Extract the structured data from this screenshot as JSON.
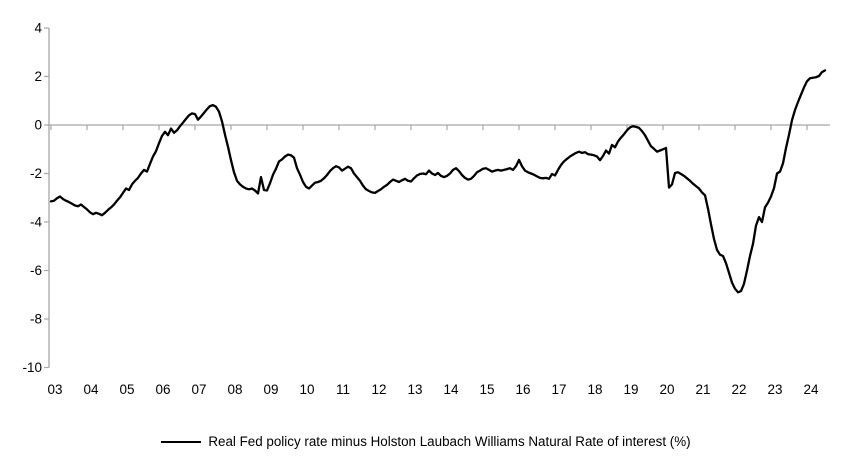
{
  "legend": {
    "label": "Real Fed policy rate minus Holston Laubach Williams Natural Rate of interest (%)"
  },
  "chart_data": {
    "type": "line",
    "title": "",
    "xlabel": "",
    "ylabel": "",
    "legend_position": "bottom-center",
    "grid": "zero-line-only",
    "line_color": "#000000",
    "axis_color": "#a6a6a6",
    "text_color": "#000000",
    "ylim": [
      -10,
      4
    ],
    "y_tick_values": [
      4,
      2,
      0,
      -2,
      -4,
      -6,
      -8,
      -10
    ],
    "x_tick_labels": [
      "03",
      "04",
      "05",
      "06",
      "07",
      "08",
      "09",
      "10",
      "11",
      "12",
      "13",
      "14",
      "15",
      "16",
      "17",
      "18",
      "19",
      "20",
      "21",
      "22",
      "23",
      "24"
    ],
    "x_start_year": 2003,
    "points_per_year": 12,
    "series": [
      {
        "name": "Real Fed policy rate minus Holston Laubach Williams Natural Rate of interest (%)",
        "values": [
          -3.15,
          -3.12,
          -3.02,
          -2.95,
          -3.05,
          -3.12,
          -3.18,
          -3.25,
          -3.32,
          -3.35,
          -3.28,
          -3.38,
          -3.48,
          -3.6,
          -3.68,
          -3.62,
          -3.66,
          -3.72,
          -3.62,
          -3.5,
          -3.4,
          -3.28,
          -3.12,
          -2.98,
          -2.8,
          -2.62,
          -2.68,
          -2.45,
          -2.3,
          -2.18,
          -2.0,
          -1.85,
          -1.92,
          -1.6,
          -1.3,
          -1.08,
          -0.75,
          -0.45,
          -0.28,
          -0.42,
          -0.15,
          -0.32,
          -0.22,
          -0.05,
          0.1,
          0.25,
          0.4,
          0.48,
          0.45,
          0.22,
          0.35,
          0.5,
          0.65,
          0.78,
          0.82,
          0.75,
          0.55,
          0.15,
          -0.4,
          -0.9,
          -1.45,
          -1.95,
          -2.3,
          -2.45,
          -2.55,
          -2.62,
          -2.65,
          -2.62,
          -2.7,
          -2.82,
          -2.15,
          -2.68,
          -2.7,
          -2.4,
          -2.05,
          -1.8,
          -1.5,
          -1.42,
          -1.3,
          -1.22,
          -1.25,
          -1.35,
          -1.78,
          -2.05,
          -2.35,
          -2.55,
          -2.62,
          -2.5,
          -2.38,
          -2.35,
          -2.3,
          -2.2,
          -2.06,
          -1.9,
          -1.78,
          -1.7,
          -1.75,
          -1.88,
          -1.8,
          -1.72,
          -1.78,
          -2.0,
          -2.15,
          -2.3,
          -2.5,
          -2.65,
          -2.72,
          -2.78,
          -2.8,
          -2.72,
          -2.65,
          -2.55,
          -2.47,
          -2.35,
          -2.25,
          -2.3,
          -2.35,
          -2.28,
          -2.22,
          -2.3,
          -2.33,
          -2.2,
          -2.08,
          -2.02,
          -2.0,
          -2.03,
          -1.88,
          -2.0,
          -2.06,
          -1.98,
          -2.1,
          -2.15,
          -2.1,
          -2.0,
          -1.85,
          -1.78,
          -1.9,
          -2.06,
          -2.18,
          -2.25,
          -2.22,
          -2.1,
          -1.95,
          -1.88,
          -1.8,
          -1.78,
          -1.85,
          -1.92,
          -1.88,
          -1.85,
          -1.88,
          -1.85,
          -1.82,
          -1.78,
          -1.85,
          -1.7,
          -1.44,
          -1.7,
          -1.88,
          -1.95,
          -2.0,
          -2.05,
          -2.12,
          -2.18,
          -2.2,
          -2.18,
          -2.22,
          -2.02,
          -2.08,
          -1.85,
          -1.65,
          -1.5,
          -1.4,
          -1.3,
          -1.22,
          -1.15,
          -1.1,
          -1.15,
          -1.12,
          -1.2,
          -1.22,
          -1.25,
          -1.3,
          -1.45,
          -1.28,
          -1.05,
          -1.18,
          -0.82,
          -0.92,
          -0.68,
          -0.52,
          -0.38,
          -0.22,
          -0.1,
          -0.05,
          -0.08,
          -0.12,
          -0.25,
          -0.42,
          -0.65,
          -0.88,
          -0.98,
          -1.1,
          -1.05,
          -1.0,
          -0.95,
          -2.58,
          -2.45,
          -1.98,
          -1.95,
          -2.02,
          -2.1,
          -2.2,
          -2.3,
          -2.42,
          -2.52,
          -2.62,
          -2.78,
          -2.9,
          -3.45,
          -4.1,
          -4.7,
          -5.15,
          -5.35,
          -5.4,
          -5.7,
          -6.1,
          -6.5,
          -6.75,
          -6.9,
          -6.85,
          -6.55,
          -6.0,
          -5.4,
          -4.9,
          -4.15,
          -3.8,
          -4.0,
          -3.4,
          -3.2,
          -2.95,
          -2.6,
          -2.0,
          -1.92,
          -1.58,
          -0.95,
          -0.4,
          0.2,
          0.62,
          0.95,
          1.25,
          1.55,
          1.8,
          1.93,
          1.95,
          1.97,
          2.02,
          2.18,
          2.25
        ]
      }
    ]
  }
}
